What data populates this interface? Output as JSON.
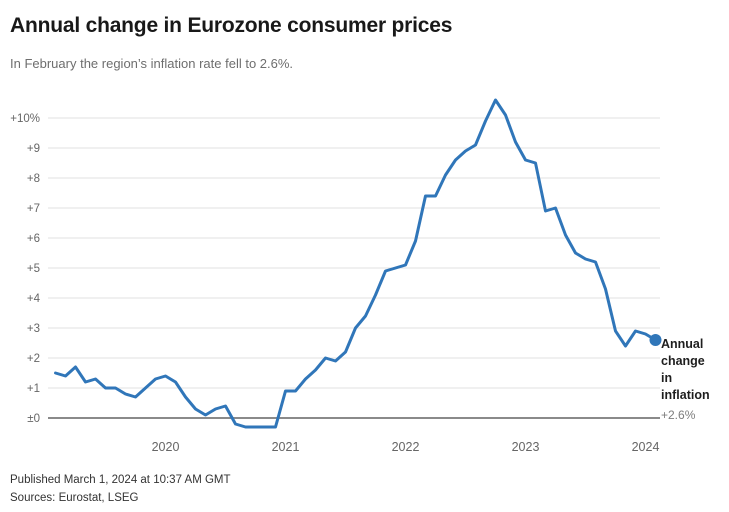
{
  "header": {
    "title": "Annual change in Eurozone consumer prices",
    "subtitle": "In February the region’s inflation rate fell to 2.6%."
  },
  "annotation": {
    "series_label": "Annual change in inflation",
    "value_label": "+2.6%"
  },
  "footer": {
    "published": "Published March 1, 2024 at 10:37 AM GMT",
    "sources": "Sources: Eurostat, LSEG"
  },
  "colors": {
    "line": "#3076b9",
    "grid": "#e2e2e2",
    "zero_line": "#8a8a8a",
    "axis_text": "#666666",
    "title_text": "#191919",
    "muted_text": "#6e6e6e",
    "annotation_text": "#1e1e1e",
    "footer_text": "#333333"
  },
  "chart_data": {
    "type": "line",
    "title": "Annual change in Eurozone consumer prices",
    "series_name": "Annual change in inflation",
    "unit": "percent year-over-year",
    "x": [
      "2019-02",
      "2019-03",
      "2019-04",
      "2019-05",
      "2019-06",
      "2019-07",
      "2019-08",
      "2019-09",
      "2019-10",
      "2019-11",
      "2019-12",
      "2020-01",
      "2020-02",
      "2020-03",
      "2020-04",
      "2020-05",
      "2020-06",
      "2020-07",
      "2020-08",
      "2020-09",
      "2020-10",
      "2020-11",
      "2020-12",
      "2021-01",
      "2021-02",
      "2021-03",
      "2021-04",
      "2021-05",
      "2021-06",
      "2021-07",
      "2021-08",
      "2021-09",
      "2021-10",
      "2021-11",
      "2021-12",
      "2022-01",
      "2022-02",
      "2022-03",
      "2022-04",
      "2022-05",
      "2022-06",
      "2022-07",
      "2022-08",
      "2022-09",
      "2022-10",
      "2022-11",
      "2022-12",
      "2023-01",
      "2023-02",
      "2023-03",
      "2023-04",
      "2023-05",
      "2023-06",
      "2023-07",
      "2023-08",
      "2023-09",
      "2023-10",
      "2023-11",
      "2023-12",
      "2024-01",
      "2024-02"
    ],
    "values": [
      1.5,
      1.4,
      1.7,
      1.2,
      1.3,
      1.0,
      1.0,
      0.8,
      0.7,
      1.0,
      1.3,
      1.4,
      1.2,
      0.7,
      0.3,
      0.1,
      0.3,
      0.4,
      -0.2,
      -0.3,
      -0.3,
      -0.3,
      -0.3,
      0.9,
      0.9,
      1.3,
      1.6,
      2.0,
      1.9,
      2.2,
      3.0,
      3.4,
      4.1,
      4.9,
      5.0,
      5.1,
      5.9,
      7.4,
      7.4,
      8.1,
      8.6,
      8.9,
      9.1,
      9.9,
      10.6,
      10.1,
      9.2,
      8.6,
      8.5,
      6.9,
      7.0,
      6.1,
      5.5,
      5.3,
      5.2,
      4.3,
      2.9,
      2.4,
      2.9,
      2.8,
      2.6
    ],
    "yticks": [
      {
        "v": 10,
        "label": "+10%"
      },
      {
        "v": 9,
        "label": "+9"
      },
      {
        "v": 8,
        "label": "+8"
      },
      {
        "v": 7,
        "label": "+7"
      },
      {
        "v": 6,
        "label": "+6"
      },
      {
        "v": 5,
        "label": "+5"
      },
      {
        "v": 4,
        "label": "+4"
      },
      {
        "v": 3,
        "label": "+3"
      },
      {
        "v": 2,
        "label": "+2"
      },
      {
        "v": 1,
        "label": "+1"
      },
      {
        "v": 0,
        "label": "±0"
      }
    ],
    "xticks": [
      {
        "month": "2020-01",
        "label": "2020"
      },
      {
        "month": "2021-01",
        "label": "2021"
      },
      {
        "month": "2022-01",
        "label": "2022"
      },
      {
        "month": "2023-01",
        "label": "2023"
      },
      {
        "month": "2024-01",
        "label": "2024"
      }
    ],
    "ylim": [
      -0.5,
      11
    ],
    "grid": true,
    "legend_position": "right-annotation",
    "end_value_label": "+2.6%",
    "end_value": 2.6
  }
}
